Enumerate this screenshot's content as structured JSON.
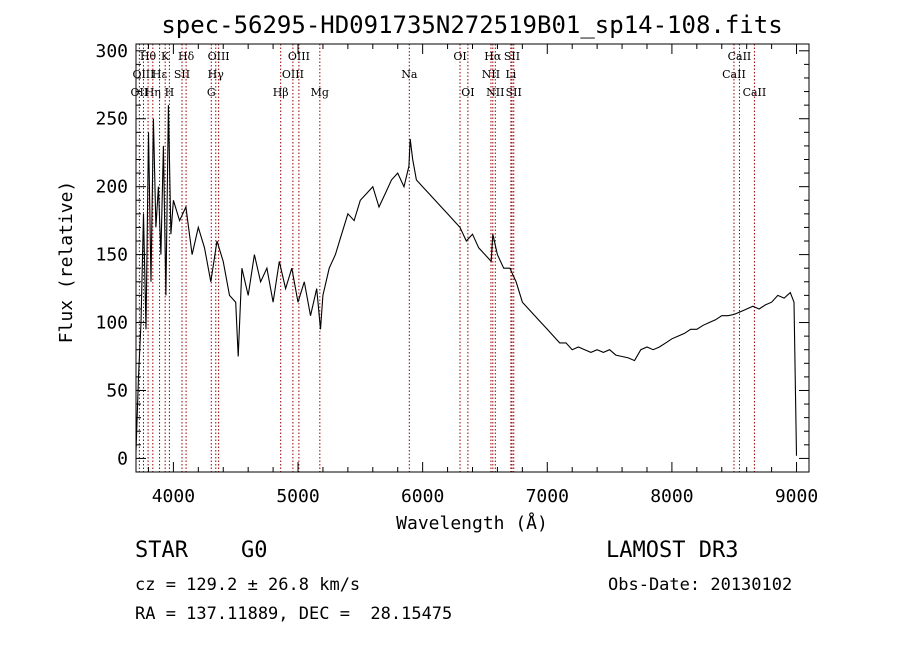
{
  "chart_data": {
    "type": "line",
    "title": "spec-56295-HD091735N272519B01_sp14-108.fits",
    "xlabel": "Wavelength (Å)",
    "ylabel": "Flux (relative)",
    "xlim": [
      3700,
      9100
    ],
    "ylim": [
      -10,
      305
    ],
    "xticks": [
      4000,
      5000,
      6000,
      7000,
      8000,
      9000
    ],
    "yticks": [
      0,
      50,
      100,
      150,
      200,
      250,
      300
    ],
    "grid": false,
    "series": [
      {
        "name": "spectrum",
        "x": [
          3700,
          3720,
          3740,
          3760,
          3780,
          3800,
          3820,
          3840,
          3860,
          3880,
          3900,
          3920,
          3940,
          3960,
          3980,
          4000,
          4050,
          4100,
          4150,
          4200,
          4250,
          4300,
          4350,
          4400,
          4450,
          4500,
          4520,
          4550,
          4600,
          4650,
          4700,
          4750,
          4800,
          4850,
          4900,
          4950,
          5000,
          5050,
          5100,
          5150,
          5180,
          5200,
          5250,
          5300,
          5350,
          5400,
          5450,
          5500,
          5550,
          5600,
          5650,
          5700,
          5750,
          5800,
          5850,
          5890,
          5900,
          5920,
          5950,
          6000,
          6050,
          6100,
          6150,
          6200,
          6250,
          6300,
          6350,
          6400,
          6450,
          6500,
          6550,
          6563,
          6600,
          6650,
          6700,
          6750,
          6800,
          6850,
          6900,
          6950,
          7000,
          7050,
          7100,
          7150,
          7200,
          7250,
          7300,
          7350,
          7400,
          7450,
          7500,
          7550,
          7600,
          7650,
          7700,
          7750,
          7800,
          7850,
          7900,
          7950,
          8000,
          8050,
          8100,
          8150,
          8200,
          8250,
          8300,
          8350,
          8400,
          8450,
          8500,
          8550,
          8600,
          8650,
          8700,
          8750,
          8800,
          8850,
          8900,
          8950,
          8980,
          9000
        ],
        "y": [
          5,
          60,
          100,
          180,
          95,
          240,
          130,
          250,
          170,
          200,
          150,
          230,
          120,
          260,
          165,
          190,
          175,
          185,
          150,
          170,
          155,
          130,
          160,
          145,
          120,
          115,
          75,
          140,
          120,
          150,
          130,
          140,
          115,
          145,
          125,
          140,
          115,
          130,
          105,
          125,
          95,
          120,
          140,
          150,
          165,
          180,
          175,
          190,
          195,
          200,
          185,
          195,
          205,
          210,
          200,
          215,
          235,
          220,
          205,
          200,
          195,
          190,
          185,
          180,
          175,
          170,
          160,
          165,
          155,
          150,
          145,
          165,
          150,
          140,
          140,
          130,
          115,
          110,
          105,
          100,
          95,
          90,
          85,
          85,
          80,
          82,
          80,
          78,
          80,
          78,
          80,
          76,
          75,
          74,
          72,
          80,
          82,
          80,
          82,
          85,
          88,
          90,
          92,
          95,
          95,
          98,
          100,
          102,
          105,
          105,
          106,
          108,
          110,
          112,
          110,
          113,
          115,
          120,
          118,
          122,
          115,
          2
        ]
      }
    ],
    "line_labels": [
      {
        "text": "OII",
        "wl": 3727,
        "row": 2,
        "color": "#990000"
      },
      {
        "text": "Hη",
        "wl": 3835,
        "row": 2,
        "color": "#990000"
      },
      {
        "text": "Hθ",
        "wl": 3797,
        "row": 0,
        "color": "#990000"
      },
      {
        "text": "OIII",
        "wl": 3760,
        "row": 1,
        "color": "#990000"
      },
      {
        "text": "Hε",
        "wl": 3889,
        "row": 1,
        "color": "#990000"
      },
      {
        "text": "K",
        "wl": 3934,
        "row": 0,
        "color": "#990000"
      },
      {
        "text": "SII",
        "wl": 4069,
        "row": 1,
        "color": "#990000"
      },
      {
        "text": "H",
        "wl": 3968,
        "row": 2,
        "color": "#990000"
      },
      {
        "text": "Hδ",
        "wl": 4102,
        "row": 0,
        "color": "#990000"
      },
      {
        "text": "OIII",
        "wl": 4363,
        "row": 0,
        "color": "#990000"
      },
      {
        "text": "Hγ",
        "wl": 4340,
        "row": 1,
        "color": "#990000"
      },
      {
        "text": "G",
        "wl": 4304,
        "row": 2,
        "color": "#990000"
      },
      {
        "text": "Hβ",
        "wl": 4861,
        "row": 2,
        "color": "#990000"
      },
      {
        "text": "OIII",
        "wl": 5007,
        "row": 0,
        "color": "#990000"
      },
      {
        "text": "OIII",
        "wl": 4959,
        "row": 1,
        "color": "#990000"
      },
      {
        "text": "Mg",
        "wl": 5175,
        "row": 2,
        "color": "#990000"
      },
      {
        "text": "Na",
        "wl": 5893,
        "row": 1,
        "color": "#990000"
      },
      {
        "text": "OI",
        "wl": 6300,
        "row": 0,
        "color": "#990000"
      },
      {
        "text": "OI",
        "wl": 6363,
        "row": 2,
        "color": "#990000"
      },
      {
        "text": "Hα",
        "wl": 6563,
        "row": 0,
        "color": "#990000"
      },
      {
        "text": "NII",
        "wl": 6548,
        "row": 1,
        "color": "#990000"
      },
      {
        "text": "SII",
        "wl": 6717,
        "row": 0,
        "color": "#990000"
      },
      {
        "text": "Li",
        "wl": 6708,
        "row": 1,
        "color": "#990000"
      },
      {
        "text": "NII",
        "wl": 6583,
        "row": 2,
        "color": "#990000"
      },
      {
        "text": "SII",
        "wl": 6731,
        "row": 2,
        "color": "#990000"
      },
      {
        "text": "CaII",
        "wl": 8542,
        "row": 0,
        "color": "#990000"
      },
      {
        "text": "CaII",
        "wl": 8498,
        "row": 1,
        "color": "#990000"
      },
      {
        "text": "CaII",
        "wl": 8662,
        "row": 2,
        "color": "#990000"
      }
    ]
  },
  "info": {
    "object_class": "STAR",
    "subclass": "G0",
    "survey": "LAMOST DR3",
    "redshift_line": "cz = 129.2 ± 26.8 km/s",
    "obs_date": "Obs-Date: 20130102",
    "coords": "RA = 137.11889, DEC =  28.15475"
  },
  "colors": {
    "spectrum": "#000000",
    "line_marker": "#990000",
    "axes": "#000000"
  }
}
